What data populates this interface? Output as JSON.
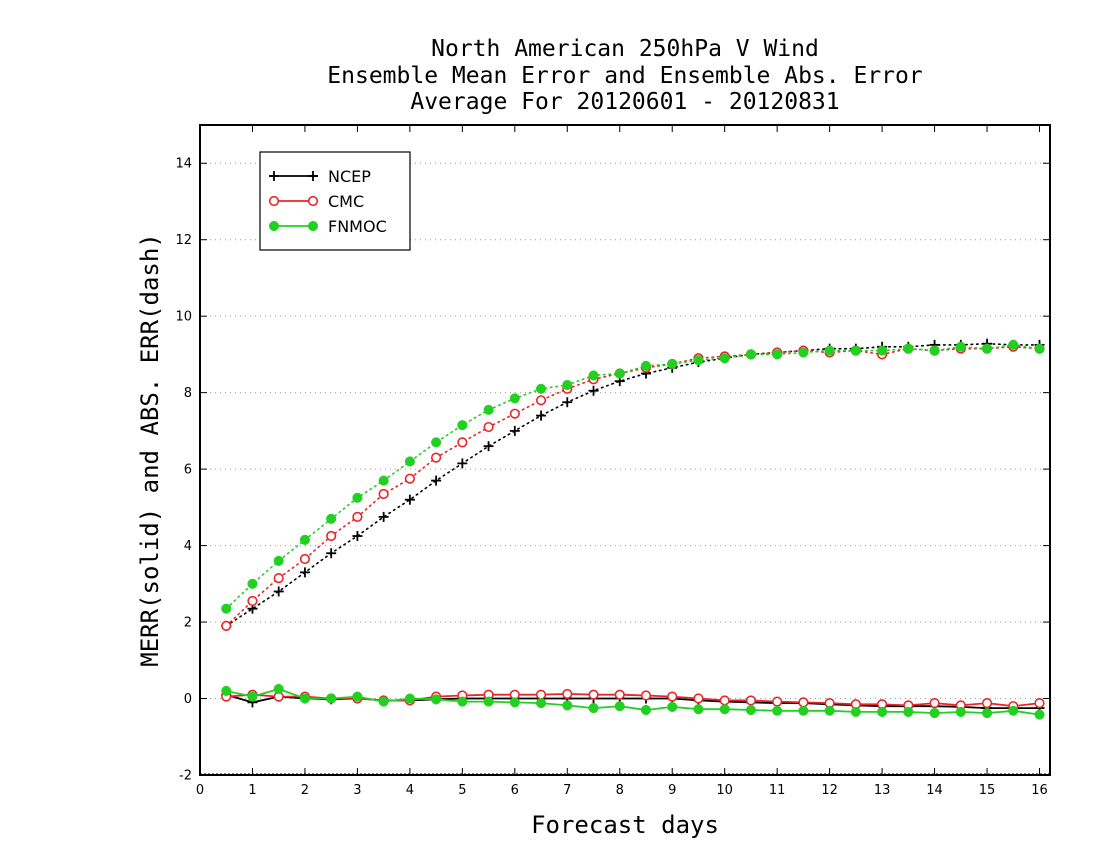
{
  "chart_data": {
    "type": "line",
    "title": [
      "North American 250hPa V Wind",
      "Ensemble Mean Error and Ensemble Abs. Error",
      "Average For 20120601 - 20120831"
    ],
    "xlabel": "Forecast days",
    "ylabel": "MERR(solid) and ABS. ERR(dash)",
    "xlim": [
      0,
      16.2
    ],
    "ylim": [
      -2,
      15
    ],
    "xticks": [
      "0",
      "1",
      "2",
      "3",
      "4",
      "5",
      "6",
      "7",
      "8",
      "9",
      "10",
      "11",
      "12",
      "13",
      "14",
      "15",
      "16"
    ],
    "yticks": [
      "-2",
      "0",
      "2",
      "4",
      "6",
      "8",
      "10",
      "12",
      "14"
    ],
    "grid": "horizontal dotted",
    "legend_position": "top-left",
    "x": [
      0.5,
      1,
      1.5,
      2,
      2.5,
      3,
      3.5,
      4,
      4.5,
      5,
      5.5,
      6,
      6.5,
      7,
      7.5,
      8,
      8.5,
      9,
      9.5,
      10,
      10.5,
      11,
      11.5,
      12,
      12.5,
      13,
      13.5,
      14,
      14.5,
      15,
      15.5,
      16
    ],
    "series": [
      {
        "name": "NCEP",
        "color": "#000000",
        "marker": "plus",
        "abs_error": [
          1.9,
          2.35,
          2.8,
          3.3,
          3.8,
          4.25,
          4.75,
          5.2,
          5.7,
          6.15,
          6.6,
          7.0,
          7.4,
          7.75,
          8.05,
          8.3,
          8.5,
          8.65,
          8.8,
          8.9,
          9.0,
          9.05,
          9.1,
          9.15,
          9.15,
          9.2,
          9.2,
          9.25,
          9.25,
          9.28,
          9.25,
          9.25
        ],
        "mean_error": [
          0.1,
          -0.1,
          0.05,
          0.0,
          -0.02,
          0.0,
          -0.05,
          -0.05,
          -0.02,
          0.0,
          0.0,
          0.0,
          0.0,
          0.0,
          0.0,
          0.0,
          0.0,
          0.0,
          -0.05,
          -0.08,
          -0.1,
          -0.12,
          -0.12,
          -0.15,
          -0.18,
          -0.2,
          -0.2,
          -0.2,
          -0.22,
          -0.25,
          -0.25,
          -0.25
        ]
      },
      {
        "name": "CMC",
        "color": "#e8262a",
        "marker": "open-circle",
        "abs_error": [
          1.9,
          2.55,
          3.15,
          3.65,
          4.25,
          4.75,
          5.35,
          5.75,
          6.3,
          6.7,
          7.1,
          7.45,
          7.8,
          8.1,
          8.35,
          8.5,
          8.65,
          8.75,
          8.9,
          8.95,
          9.0,
          9.05,
          9.1,
          9.05,
          9.1,
          9.0,
          9.15,
          9.1,
          9.15,
          9.15,
          9.2,
          9.15
        ],
        "mean_error": [
          0.05,
          0.1,
          0.05,
          0.05,
          0.0,
          0.0,
          -0.05,
          -0.05,
          0.05,
          0.08,
          0.1,
          0.1,
          0.1,
          0.12,
          0.1,
          0.1,
          0.08,
          0.05,
          0.0,
          -0.05,
          -0.05,
          -0.08,
          -0.1,
          -0.12,
          -0.15,
          -0.15,
          -0.18,
          -0.12,
          -0.18,
          -0.12,
          -0.2,
          -0.12
        ]
      },
      {
        "name": "FNMOC",
        "color": "#22d022",
        "marker": "filled-circle",
        "abs_error": [
          2.35,
          3.0,
          3.6,
          4.15,
          4.7,
          5.25,
          5.7,
          6.2,
          6.7,
          7.15,
          7.55,
          7.85,
          8.1,
          8.2,
          8.45,
          8.5,
          8.7,
          8.75,
          8.85,
          8.9,
          9.0,
          9.0,
          9.05,
          9.1,
          9.1,
          9.1,
          9.15,
          9.1,
          9.2,
          9.15,
          9.25,
          9.15
        ],
        "mean_error": [
          0.2,
          0.05,
          0.25,
          0.0,
          0.0,
          0.05,
          -0.08,
          0.0,
          -0.02,
          -0.08,
          -0.08,
          -0.1,
          -0.12,
          -0.18,
          -0.25,
          -0.2,
          -0.3,
          -0.22,
          -0.28,
          -0.28,
          -0.3,
          -0.32,
          -0.32,
          -0.32,
          -0.35,
          -0.35,
          -0.35,
          -0.38,
          -0.35,
          -0.38,
          -0.32,
          -0.42
        ]
      }
    ]
  }
}
